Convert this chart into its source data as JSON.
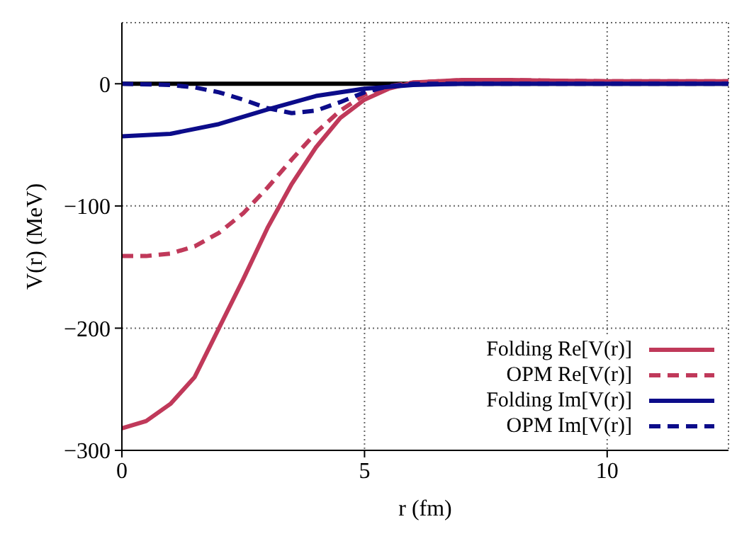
{
  "chart_data": {
    "type": "line",
    "xlabel": "r (fm)",
    "ylabel": "V(r) (MeV)",
    "xlim": [
      0,
      12.5
    ],
    "xticks": [
      0,
      5,
      10
    ],
    "ylim": [
      -300,
      50
    ],
    "yticks": [
      -300,
      -200,
      -100,
      0
    ],
    "grid": true,
    "legend": "bottom right",
    "marker": "none",
    "ref_lines": [
      {
        "axis": "y",
        "value": 0,
        "color": "#000000"
      }
    ],
    "series": [
      {
        "name": "Folding Re[V(r)]",
        "color": "#c0395a",
        "line_style": "solid",
        "x": [
          0,
          0.5,
          1,
          1.5,
          2,
          2.5,
          3,
          3.5,
          4,
          4.5,
          5,
          5.5,
          6,
          7,
          8,
          10,
          12.5
        ],
        "values": [
          -282,
          -276,
          -262,
          -240,
          -200,
          -160,
          -118,
          -82,
          -52,
          -28,
          -13,
          -4,
          1,
          3,
          3,
          2,
          2
        ]
      },
      {
        "name": "OPM Re[V(r)]",
        "color": "#c0395a",
        "line_style": "dashed",
        "x": [
          0,
          0.5,
          1,
          1.5,
          2,
          2.5,
          3,
          3.5,
          4,
          4.5,
          5,
          5.5,
          6,
          7,
          8,
          10,
          12.5
        ],
        "values": [
          -141,
          -141,
          -139,
          -133,
          -122,
          -106,
          -85,
          -62,
          -40,
          -22,
          -9,
          -2,
          1,
          3,
          3,
          2,
          2
        ]
      },
      {
        "name": "Folding Im[V(r)]",
        "color": "#0c0c8a",
        "line_style": "solid",
        "x": [
          0,
          1,
          2,
          3,
          4,
          5,
          6,
          7,
          12.5
        ],
        "values": [
          -43,
          -41,
          -33,
          -21,
          -10,
          -4,
          -1,
          0,
          0
        ]
      },
      {
        "name": "OPM Im[V(r)]",
        "color": "#0c0c8a",
        "line_style": "dashed",
        "x": [
          0,
          1,
          1.5,
          2,
          2.5,
          3,
          3.5,
          4,
          4.5,
          5,
          5.5,
          6,
          12.5
        ],
        "values": [
          0,
          -1,
          -3,
          -7,
          -13,
          -20,
          -24,
          -22,
          -15,
          -7,
          -2,
          0,
          0
        ]
      }
    ]
  }
}
